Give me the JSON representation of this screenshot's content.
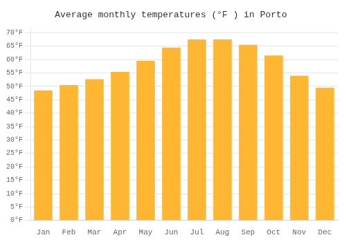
{
  "chart_data": {
    "type": "bar",
    "title": "Average monthly temperatures (°F ) in Porto",
    "categories": [
      "Jan",
      "Feb",
      "Mar",
      "Apr",
      "May",
      "Jun",
      "Jul",
      "Aug",
      "Sep",
      "Oct",
      "Nov",
      "Dec"
    ],
    "values": [
      48.5,
      50.5,
      52.7,
      55.4,
      59.5,
      64.5,
      67.5,
      67.5,
      65.5,
      61.5,
      54.0,
      49.5
    ],
    "color": "#FFB733",
    "ylim": [
      0,
      72
    ],
    "yticks": [
      {
        "value": 0,
        "label": "0°F"
      },
      {
        "value": 5,
        "label": "5°F"
      },
      {
        "value": 10,
        "label": "10°F"
      },
      {
        "value": 15,
        "label": "15°F"
      },
      {
        "value": 20,
        "label": "20°F"
      },
      {
        "value": 25,
        "label": "25°F"
      },
      {
        "value": 30,
        "label": "30°F"
      },
      {
        "value": 35,
        "label": "35°F"
      },
      {
        "value": 40,
        "label": "40°F"
      },
      {
        "value": 45,
        "label": "45°F"
      },
      {
        "value": 50,
        "label": "50°F"
      },
      {
        "value": 55,
        "label": "55°F"
      },
      {
        "value": 60,
        "label": "60°F"
      },
      {
        "value": 65,
        "label": "65°F"
      },
      {
        "value": 70,
        "label": "70°F"
      }
    ],
    "grid": true
  }
}
